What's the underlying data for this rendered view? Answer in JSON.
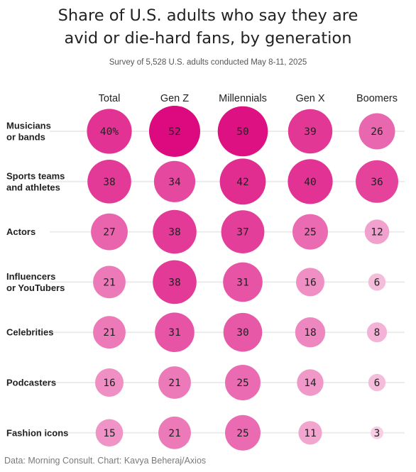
{
  "title_line1": "Share of U.S. adults who say they are",
  "title_line2": "avid or die-hard fans, by generation",
  "subtitle": "Survey of 5,528 U.S. adults conducted May 8-11, 2025",
  "source": "Data: Morning Consult. Chart: Kavya Beheraj/Axios",
  "colors": {
    "text": "#222222",
    "gridline": "#ebebeb",
    "scale_low": "#fbe4f0",
    "scale_high": "#dc0a7e"
  },
  "chart_data": {
    "type": "bubble-matrix",
    "columns": [
      "Total",
      "Gen Z",
      "Millennials",
      "Gen X",
      "Boomers"
    ],
    "rows": [
      {
        "label": [
          "Musicians",
          "or bands"
        ],
        "values": [
          40,
          52,
          50,
          39,
          26
        ],
        "value_labels": [
          "40%",
          "52",
          "50",
          "39",
          "26"
        ]
      },
      {
        "label": [
          "Sports teams",
          "and athletes"
        ],
        "values": [
          38,
          34,
          42,
          40,
          36
        ],
        "value_labels": [
          "38",
          "34",
          "42",
          "40",
          "36"
        ]
      },
      {
        "label": [
          "Actors"
        ],
        "values": [
          27,
          38,
          37,
          25,
          12
        ],
        "value_labels": [
          "27",
          "38",
          "37",
          "25",
          "12"
        ]
      },
      {
        "label": [
          "Influencers",
          "or YouTubers"
        ],
        "values": [
          21,
          38,
          31,
          16,
          6
        ],
        "value_labels": [
          "21",
          "38",
          "31",
          "16",
          "6"
        ]
      },
      {
        "label": [
          "Celebrities"
        ],
        "values": [
          21,
          31,
          30,
          18,
          8
        ],
        "value_labels": [
          "21",
          "31",
          "30",
          "18",
          "8"
        ]
      },
      {
        "label": [
          "Podcasters"
        ],
        "values": [
          16,
          21,
          25,
          14,
          6
        ],
        "value_labels": [
          "16",
          "21",
          "25",
          "14",
          "6"
        ]
      },
      {
        "label": [
          "Fashion icons"
        ],
        "values": [
          15,
          21,
          25,
          11,
          3
        ],
        "value_labels": [
          "15",
          "21",
          "25",
          "11",
          "3"
        ]
      }
    ],
    "value_range": [
      0,
      52
    ]
  }
}
